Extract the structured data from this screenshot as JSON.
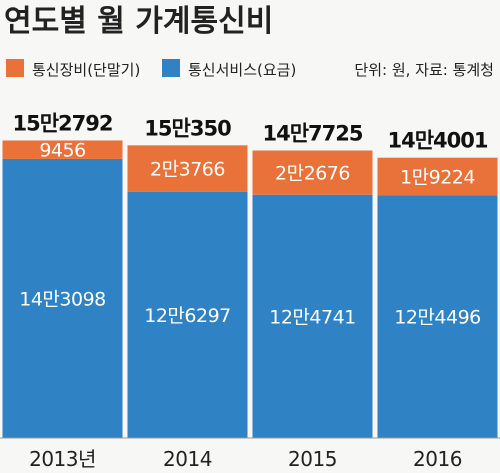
{
  "chart_data": {
    "type": "bar",
    "stacked": true,
    "title": "연도별 월 가계통신비",
    "categories": [
      "2013년",
      "2014",
      "2015",
      "2016"
    ],
    "series": [
      {
        "name": "통신서비스(요금)",
        "color": "#2f82c4",
        "values": [
          143098,
          126297,
          124741,
          124496
        ],
        "labels": [
          "14만3098",
          "12만6297",
          "12만4741",
          "12만4496"
        ]
      },
      {
        "name": "통신장비(단말기)",
        "color": "#e8723a",
        "values": [
          9456,
          23766,
          22676,
          19224
        ],
        "labels": [
          "9456",
          "2만3766",
          "2만2676",
          "1만9224"
        ]
      }
    ],
    "totals": [
      152792,
      150350,
      147725,
      144001
    ],
    "total_labels": [
      "15만2792",
      "15만350",
      "14만7725",
      "14만4001"
    ],
    "note": "단위: 원, 자료: 통계청",
    "legend_position": "top"
  }
}
